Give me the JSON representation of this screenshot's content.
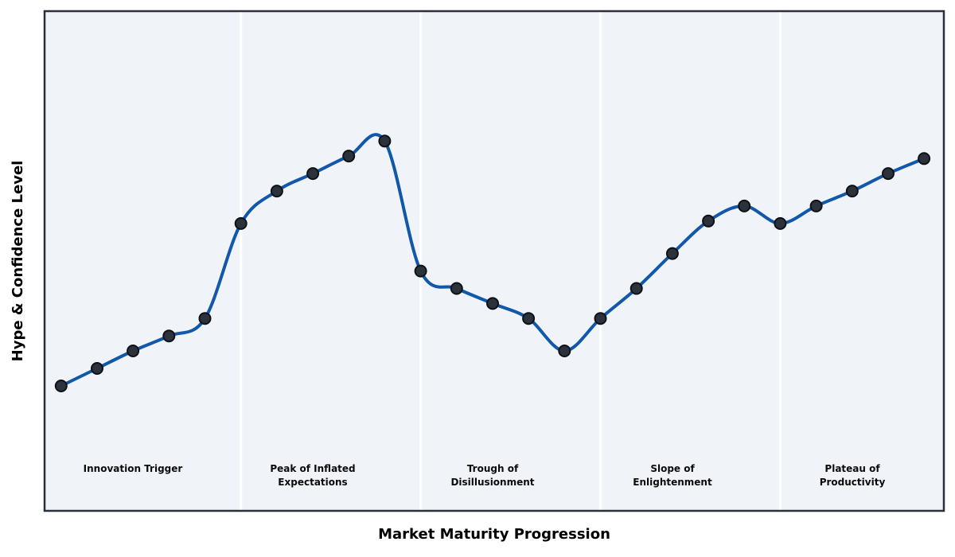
{
  "figure": {
    "kind": "hype-cycle-curve",
    "background": "#ffffff"
  },
  "chart_data": {
    "type": "line",
    "title": "",
    "xlabel": "Market Maturity Progression",
    "ylabel": "Hype & Confidence Level",
    "x": [
      0,
      1,
      2,
      3,
      4,
      5,
      6,
      7,
      8,
      9,
      10,
      11,
      12,
      13,
      14,
      15,
      16,
      17,
      18,
      19,
      20,
      21,
      22,
      23,
      24
    ],
    "values": [
      25,
      28.5,
      32,
      35,
      38.5,
      57.5,
      64,
      67.5,
      71,
      74,
      48,
      44.5,
      41.5,
      38.5,
      32,
      38.5,
      44.5,
      51.5,
      58,
      61,
      57.5,
      61,
      64,
      67.5,
      70.5
    ],
    "xlim": [
      -0.46,
      24.55
    ],
    "ylim": [
      0,
      100
    ],
    "grid": false,
    "legend": null,
    "tick_labels": "none",
    "smoothing": "spline",
    "phases": [
      {
        "key": "innovation-trigger",
        "label": "Innovation Trigger",
        "x_start": -0.46,
        "x_end": 5,
        "label_x": 2
      },
      {
        "key": "peak-of-inflated-expectations",
        "label": "Peak of Inflated\nExpectations",
        "x_start": 5,
        "x_end": 10,
        "label_x": 7
      },
      {
        "key": "trough-of-disillusionment",
        "label": "Trough of\nDisillusionment",
        "x_start": 10,
        "x_end": 15,
        "label_x": 12
      },
      {
        "key": "slope-of-enlightenment",
        "label": "Slope of\nEnlightenment",
        "x_start": 15,
        "x_end": 20,
        "label_x": 17
      },
      {
        "key": "plateau-of-productivity",
        "label": "Plateau of\nProductivity",
        "x_start": 20,
        "x_end": 24.55,
        "label_x": 22
      }
    ],
    "colors": {
      "line": "#1158ab",
      "marker_fill": "#2b323c",
      "marker_edge": "#0e1116",
      "band_fill": "#f0f4f8",
      "phase_divider": "#ffffff",
      "plot_border": "#2b2f36",
      "text": "#000000"
    },
    "marker": {
      "shape": "circle",
      "radius": 7
    },
    "line_width": 4
  }
}
